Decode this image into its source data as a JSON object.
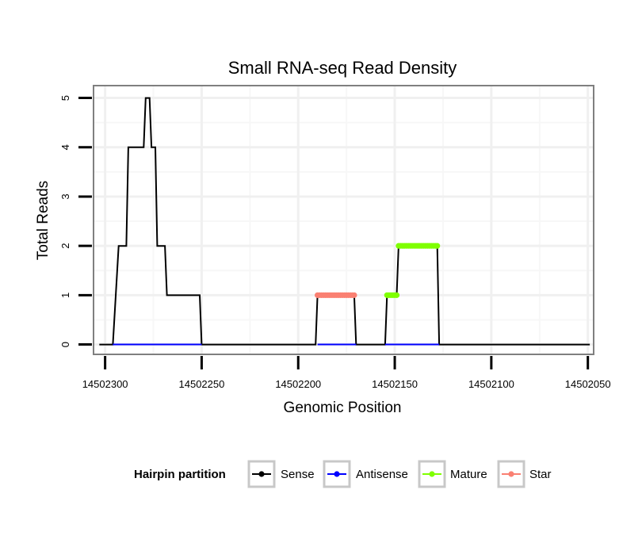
{
  "chart_data": {
    "type": "line",
    "title": "Small RNA-seq Read Density",
    "xlabel": "Genomic Position",
    "ylabel": "Total Reads",
    "xlim": [
      14502306,
      14502047
    ],
    "x_reversed": true,
    "ylim": [
      -0.2,
      5.25
    ],
    "x_ticks": [
      14502300,
      14502250,
      14502200,
      14502150,
      14502100,
      14502050
    ],
    "x_tick_labels": [
      "14502300",
      "14502250",
      "14502200",
      "14502150",
      "14502100",
      "14502050"
    ],
    "y_ticks": [
      0,
      1,
      2,
      3,
      4,
      5
    ],
    "y_tick_labels": [
      "0",
      "1",
      "2",
      "3",
      "4",
      "5"
    ],
    "grid": true,
    "legend": {
      "title": "Hairpin partition",
      "position": "bottom",
      "entries": [
        {
          "label": "Sense",
          "color": "#000000"
        },
        {
          "label": "Antisense",
          "color": "#0000ff"
        },
        {
          "label": "Mature",
          "color": "#7fff00"
        },
        {
          "label": "Star",
          "color": "#fa8072"
        }
      ]
    },
    "series": [
      {
        "name": "Sense",
        "color": "#000000",
        "style": "line",
        "x": [
          14502303,
          14502296,
          14502293,
          14502292,
          14502289,
          14502288,
          14502280,
          14502279,
          14502277,
          14502276,
          14502274,
          14502273,
          14502269,
          14502268,
          14502263,
          14502262,
          14502251,
          14502250,
          14502191,
          14502190,
          14502171,
          14502170,
          14502155,
          14502154,
          14502149,
          14502148,
          14502128,
          14502127,
          14502049
        ],
        "y": [
          0,
          0,
          2,
          2,
          2,
          4,
          4,
          5,
          5,
          4,
          4,
          2,
          2,
          1,
          1,
          1,
          1,
          0,
          0,
          1,
          1,
          0,
          0,
          1,
          1,
          2,
          2,
          0,
          0
        ]
      },
      {
        "name": "Antisense",
        "color": "#0000ff",
        "style": "line",
        "x": [
          14502296,
          14502250,
          14502190,
          14502170,
          14502155,
          14502127
        ],
        "y": [
          0,
          0,
          0,
          0,
          0,
          0
        ],
        "segments": [
          [
            14502296,
            14502250
          ],
          [
            14502190,
            14502170
          ],
          [
            14502155,
            14502127
          ]
        ]
      },
      {
        "name": "Mature",
        "color": "#7fff00",
        "style": "points",
        "ranges": [
          {
            "from": 14502154,
            "to": 14502149,
            "value": 1
          },
          {
            "from": 14502148,
            "to": 14502128,
            "value": 2
          }
        ]
      },
      {
        "name": "Star",
        "color": "#fa8072",
        "style": "points",
        "ranges": [
          {
            "from": 14502190,
            "to": 14502171,
            "value": 1
          }
        ]
      }
    ]
  }
}
